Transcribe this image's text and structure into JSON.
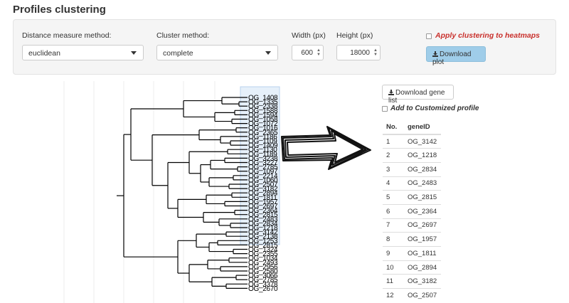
{
  "page": {
    "title": "Profiles clustering"
  },
  "controls": {
    "distance_label": "Distance measure method:",
    "distance_value": "euclidean",
    "cluster_label": "Cluster method:",
    "cluster_value": "complete",
    "width_label": "Width (px)",
    "width_value": "600",
    "height_label": "Height (px)",
    "height_value": "18000",
    "apply_label": "Apply clustering to heatmaps",
    "download_plot": "Download plot"
  },
  "side": {
    "download_gene_list": "Download gene list",
    "add_customized": "Add to Customized profile",
    "table": {
      "headers": [
        "No.",
        "geneID"
      ],
      "rows": [
        [
          "1",
          "OG_3142"
        ],
        [
          "2",
          "OG_1218"
        ],
        [
          "3",
          "OG_2834"
        ],
        [
          "4",
          "OG_2483"
        ],
        [
          "5",
          "OG_2815"
        ],
        [
          "6",
          "OG_2364"
        ],
        [
          "7",
          "OG_2697"
        ],
        [
          "8",
          "OG_1957"
        ],
        [
          "9",
          "OG_1811"
        ],
        [
          "10",
          "OG_2894"
        ],
        [
          "11",
          "OG_3182"
        ],
        [
          "12",
          "OG_2507"
        ]
      ]
    }
  },
  "dendrogram": {
    "leaves": [
      "OG_1408",
      "OG_1335",
      "OG_2338",
      "OG_1588",
      "OG_1594",
      "OG_1058",
      "OG_1072",
      "OG_1016",
      "OG_2365",
      "OG_1186",
      "OG_1109",
      "OG_1409",
      "OG_1130",
      "OG_1189",
      "OG_3238",
      "OG_3227",
      "OG_2785",
      "OG_1097",
      "OG_2214",
      "OG_1060",
      "OG_2507",
      "OG_3182",
      "OG_2894",
      "OG_1811",
      "OG_1957",
      "OG_2697",
      "OG_2364",
      "OG_2815",
      "OG_2483",
      "OG_2834",
      "OG_1218",
      "OG_3142",
      "OG_2138",
      "OG_1253",
      "OG_2815",
      "OG_1324",
      "OG_2355",
      "OG_1034",
      "OG_2493",
      "OG_2956",
      "OG_2580",
      "OG_3066",
      "OG_2785",
      "OG_3378",
      "OG_2670"
    ]
  }
}
